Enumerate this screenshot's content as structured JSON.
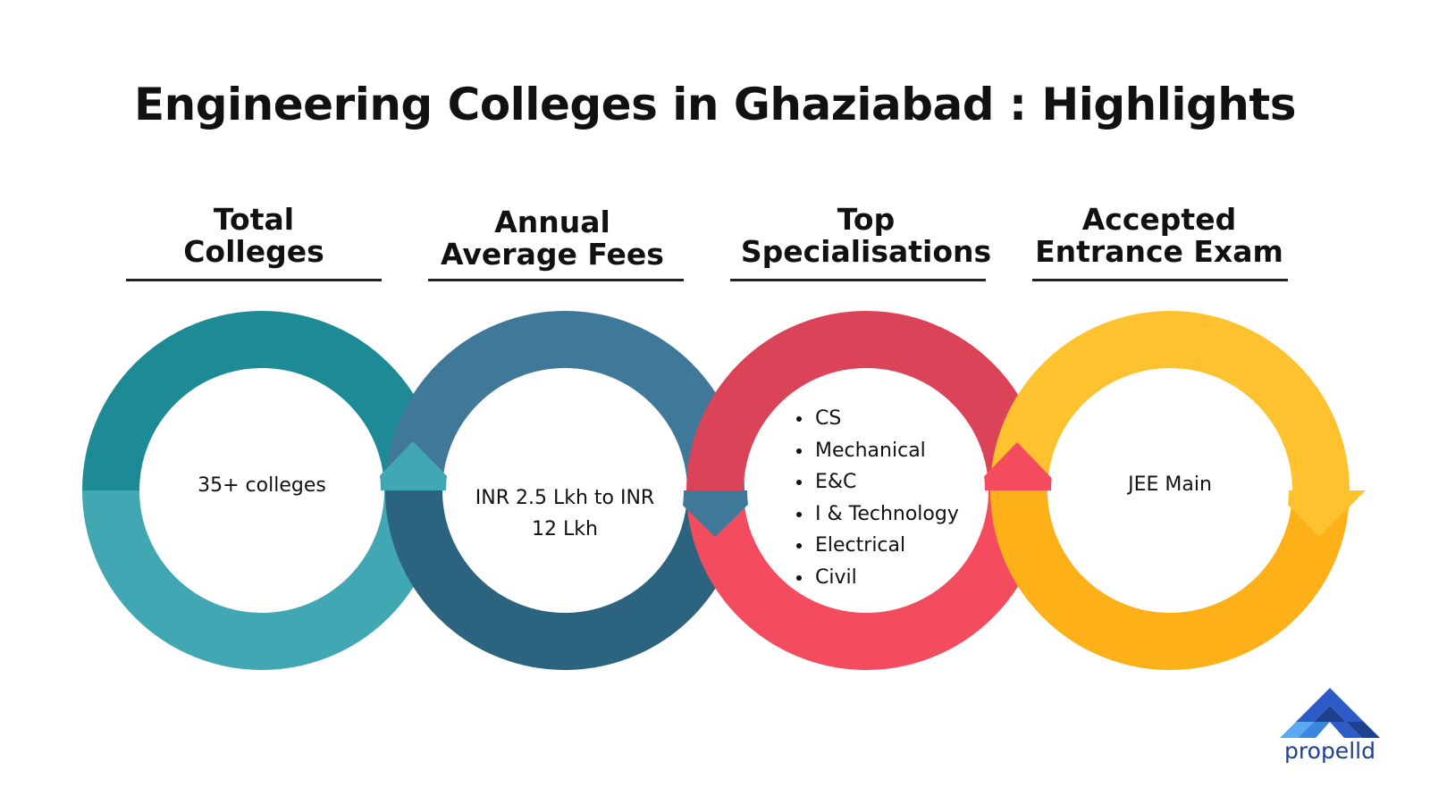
{
  "title": "Engineering Colleges in Ghaziabad :  Highlights",
  "columns": [
    {
      "heading_line1": "Total",
      "heading_line2": "Colleges",
      "value": "35+ colleges",
      "color_top": "#1e8a95",
      "color_bottom": "#41a7b3"
    },
    {
      "heading_line1": "Annual",
      "heading_line2": "Average Fees",
      "value_line1": "INR 2.5 Lkh to INR",
      "value_line2": "12 Lkh",
      "color_top": "#3f7898",
      "color_bottom": "#2c6480"
    },
    {
      "heading_line1": "Top",
      "heading_line2": "Specialisations",
      "items": [
        "CS",
        "Mechanical",
        "E&C",
        "I & Technology",
        "Electrical",
        "Civil"
      ],
      "color_top": "#db4458",
      "color_bottom": "#f24c5e"
    },
    {
      "heading_line1": "Accepted",
      "heading_line2": "Entrance Exam",
      "value": "JEE Main",
      "color_top": "#fec22e",
      "color_bottom": "#fdb018"
    }
  ],
  "logo": {
    "text": "propelld",
    "icon": "propelld-chevron-logo"
  }
}
